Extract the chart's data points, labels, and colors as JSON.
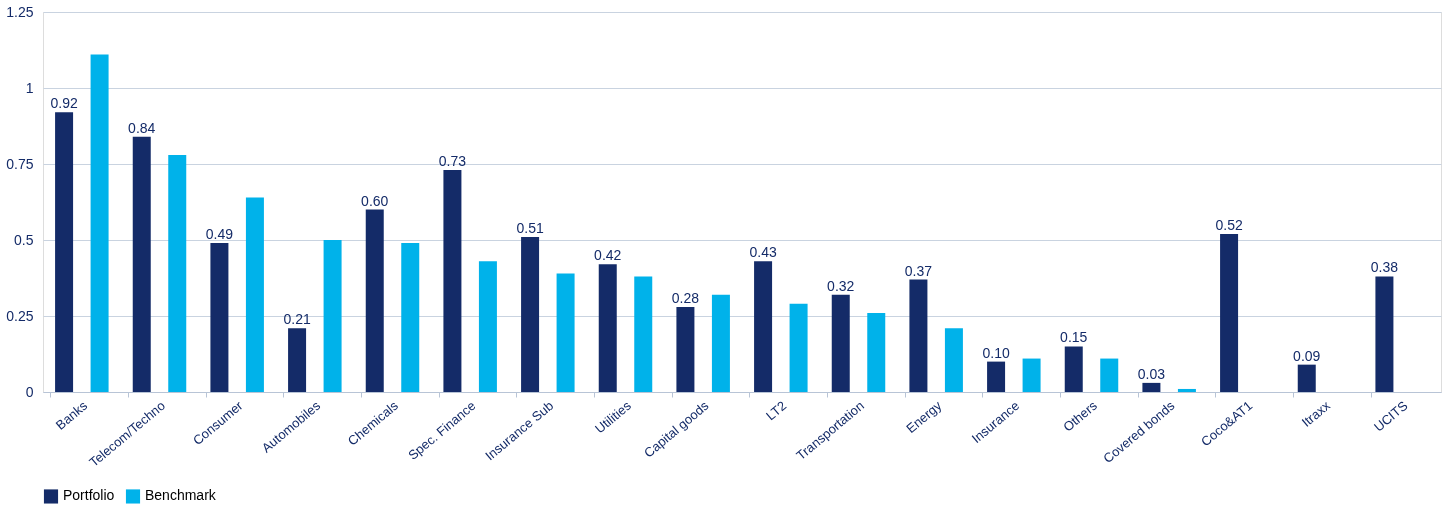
{
  "chart_data": {
    "type": "bar",
    "categories": [
      "Banks",
      "Telecom/Techno",
      "Consumer",
      "Automobiles",
      "Chemicals",
      "Spec. Finance",
      "Insurance Sub",
      "Utilities",
      "Capital goods",
      "LT2",
      "Transportation",
      "Energy",
      "Insurance",
      "Others",
      "Covered bonds",
      "Coco&AT1",
      "Itraxx",
      "UCITS"
    ],
    "series": [
      {
        "name": "Portfolio",
        "color": "#142b68",
        "values": [
          0.92,
          0.84,
          0.49,
          0.21,
          0.6,
          0.73,
          0.51,
          0.42,
          0.28,
          0.43,
          0.32,
          0.37,
          0.1,
          0.15,
          0.03,
          0.52,
          0.09,
          0.38
        ],
        "value_labels": [
          "0.92",
          "0.84",
          "0.49",
          "0.21",
          "0.60",
          "0.73",
          "0.51",
          "0.42",
          "0.28",
          "0.43",
          "0.32",
          "0.37",
          "0.10",
          "0.15",
          "0.03",
          "0.52",
          "0.09",
          "0.38"
        ]
      },
      {
        "name": "Benchmark",
        "color": "#00b2ea",
        "values": [
          1.11,
          0.78,
          0.64,
          0.5,
          0.49,
          0.43,
          0.39,
          0.38,
          0.32,
          0.29,
          0.26,
          0.21,
          0.11,
          0.11,
          0.01,
          null,
          null,
          null
        ]
      }
    ],
    "ylim": [
      0,
      1.25
    ],
    "yticks": [
      0,
      0.25,
      0.5,
      0.75,
      1,
      1.25
    ],
    "grid": "y",
    "legend": "bottom"
  }
}
